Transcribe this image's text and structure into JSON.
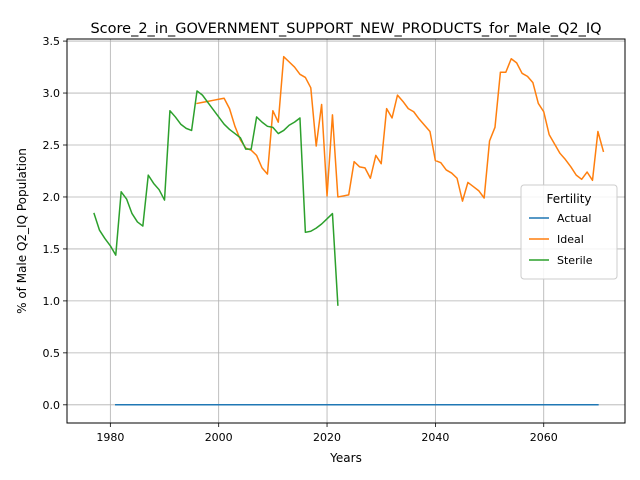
{
  "chart_data": {
    "type": "line",
    "title": "Score_2_in_GOVERNMENT_SUPPORT_NEW_PRODUCTS_for_Male_Q2_IQ",
    "xlabel": "Years",
    "ylabel": "% of Male Q2_IQ Population",
    "xlim": [
      1972,
      2075
    ],
    "ylim": [
      -0.175,
      3.52
    ],
    "xticks": [
      1980,
      2000,
      2020,
      2040,
      2060
    ],
    "yticks": [
      0.0,
      0.5,
      1.0,
      1.5,
      2.0,
      2.5,
      3.0,
      3.5
    ],
    "xtick_labels": [
      "1980",
      "2000",
      "2020",
      "2040",
      "2060"
    ],
    "ytick_labels": [
      "0.0",
      "0.5",
      "1.0",
      "1.5",
      "2.0",
      "2.5",
      "3.0",
      "3.5"
    ],
    "grid": true,
    "legend": {
      "title": "Fertility",
      "placement": "center-right"
    },
    "series": [
      {
        "name": "Actual",
        "color": "#1f77b4",
        "points": [
          [
            1981,
            0.0
          ],
          [
            2070,
            0.0
          ]
        ]
      },
      {
        "name": "Ideal",
        "color": "#ff7f0e",
        "points": [
          [
            1996,
            2.9
          ],
          [
            1997,
            2.91
          ],
          [
            1998,
            2.92
          ],
          [
            1999,
            2.93
          ],
          [
            2000,
            2.94
          ],
          [
            2001,
            2.95
          ],
          [
            2002,
            2.85
          ],
          [
            2003,
            2.68
          ],
          [
            2004,
            2.55
          ],
          [
            2005,
            2.47
          ],
          [
            2006,
            2.45
          ],
          [
            2007,
            2.4
          ],
          [
            2008,
            2.28
          ],
          [
            2009,
            2.22
          ],
          [
            2010,
            2.83
          ],
          [
            2011,
            2.72
          ],
          [
            2012,
            3.35
          ],
          [
            2013,
            3.3
          ],
          [
            2014,
            3.25
          ],
          [
            2015,
            3.18
          ],
          [
            2016,
            3.15
          ],
          [
            2017,
            3.05
          ],
          [
            2018,
            2.49
          ],
          [
            2019,
            2.89
          ],
          [
            2020,
            2.01
          ],
          [
            2021,
            2.79
          ],
          [
            2022,
            2.0
          ],
          [
            2023,
            2.01
          ],
          [
            2024,
            2.02
          ],
          [
            2025,
            2.34
          ],
          [
            2026,
            2.29
          ],
          [
            2027,
            2.28
          ],
          [
            2028,
            2.18
          ],
          [
            2029,
            2.4
          ],
          [
            2030,
            2.32
          ],
          [
            2031,
            2.85
          ],
          [
            2032,
            2.76
          ],
          [
            2033,
            2.98
          ],
          [
            2034,
            2.92
          ],
          [
            2035,
            2.85
          ],
          [
            2036,
            2.82
          ],
          [
            2037,
            2.75
          ],
          [
            2038,
            2.69
          ],
          [
            2039,
            2.63
          ],
          [
            2040,
            2.35
          ],
          [
            2041,
            2.33
          ],
          [
            2042,
            2.26
          ],
          [
            2043,
            2.23
          ],
          [
            2044,
            2.18
          ],
          [
            2045,
            1.96
          ],
          [
            2046,
            2.14
          ],
          [
            2047,
            2.1
          ],
          [
            2048,
            2.06
          ],
          [
            2049,
            1.99
          ],
          [
            2050,
            2.54
          ],
          [
            2051,
            2.67
          ],
          [
            2052,
            3.2
          ],
          [
            2053,
            3.2
          ],
          [
            2054,
            3.33
          ],
          [
            2055,
            3.29
          ],
          [
            2056,
            3.19
          ],
          [
            2057,
            3.16
          ],
          [
            2058,
            3.1
          ],
          [
            2059,
            2.9
          ],
          [
            2060,
            2.82
          ],
          [
            2061,
            2.6
          ],
          [
            2062,
            2.51
          ],
          [
            2063,
            2.42
          ],
          [
            2064,
            2.36
          ],
          [
            2065,
            2.29
          ],
          [
            2066,
            2.21
          ],
          [
            2067,
            2.17
          ],
          [
            2068,
            2.24
          ],
          [
            2069,
            2.16
          ],
          [
            2070,
            2.63
          ],
          [
            2071,
            2.44
          ]
        ]
      },
      {
        "name": "Sterile",
        "color": "#2ca02c",
        "points": [
          [
            1977,
            1.84
          ],
          [
            1978,
            1.68
          ],
          [
            1979,
            1.6
          ],
          [
            1980,
            1.53
          ],
          [
            1981,
            1.44
          ],
          [
            1982,
            2.05
          ],
          [
            1983,
            1.98
          ],
          [
            1984,
            1.84
          ],
          [
            1985,
            1.76
          ],
          [
            1986,
            1.72
          ],
          [
            1987,
            2.21
          ],
          [
            1988,
            2.13
          ],
          [
            1989,
            2.07
          ],
          [
            1990,
            1.97
          ],
          [
            1991,
            2.83
          ],
          [
            1992,
            2.77
          ],
          [
            1993,
            2.7
          ],
          [
            1994,
            2.66
          ],
          [
            1995,
            2.64
          ],
          [
            1996,
            3.02
          ],
          [
            1997,
            2.98
          ],
          [
            1998,
            2.91
          ],
          [
            1999,
            2.84
          ],
          [
            2000,
            2.77
          ],
          [
            2001,
            2.7
          ],
          [
            2002,
            2.65
          ],
          [
            2003,
            2.61
          ],
          [
            2004,
            2.57
          ],
          [
            2005,
            2.46
          ],
          [
            2006,
            2.46
          ],
          [
            2007,
            2.77
          ],
          [
            2008,
            2.72
          ],
          [
            2009,
            2.68
          ],
          [
            2010,
            2.67
          ],
          [
            2011,
            2.61
          ],
          [
            2012,
            2.64
          ],
          [
            2013,
            2.69
          ],
          [
            2014,
            2.72
          ],
          [
            2015,
            2.76
          ],
          [
            2016,
            1.66
          ],
          [
            2017,
            1.67
          ],
          [
            2018,
            1.7
          ],
          [
            2019,
            1.74
          ],
          [
            2020,
            1.79
          ],
          [
            2021,
            1.84
          ],
          [
            2022,
            0.96
          ]
        ]
      }
    ]
  }
}
